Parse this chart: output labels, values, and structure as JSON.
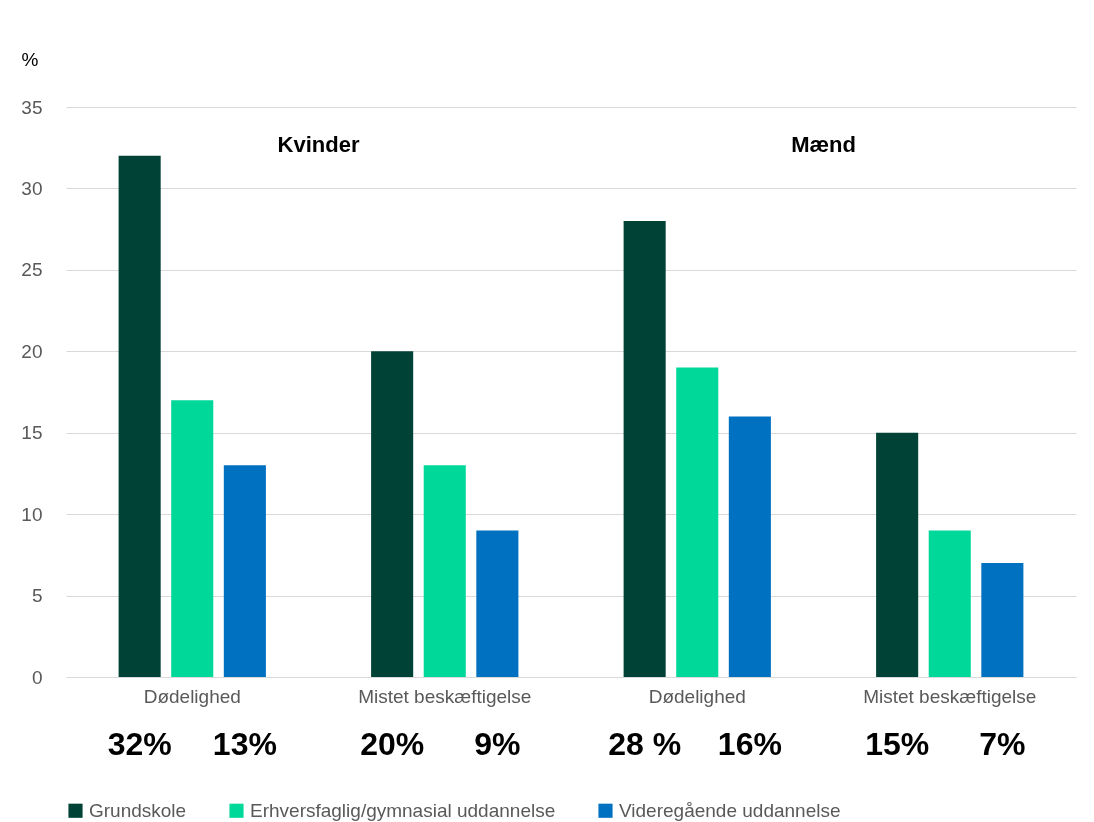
{
  "chart_data": {
    "type": "bar",
    "ylabel": "%",
    "categories": [
      "Dødelighed",
      "Mistet beskæftigelse",
      "Dødelighed",
      "Mistet beskæftigelse"
    ],
    "series": [
      {
        "name": "Grundskole",
        "color": "#004236",
        "values": [
          32,
          20,
          28,
          15
        ],
        "value_labels": [
          "32%",
          "20%",
          "28 %",
          "15%"
        ]
      },
      {
        "name": "Erhversfaglig/gymnasial uddannelse",
        "color": "#00d89a",
        "values": [
          17,
          13,
          19,
          9
        ]
      },
      {
        "name": "Videregående uddannelse",
        "color": "#0071c1",
        "values": [
          13,
          9,
          16,
          7
        ],
        "value_labels": [
          "13%",
          "9%",
          "16%",
          "7%"
        ]
      }
    ],
    "ylim": [
      0,
      35
    ],
    "yticks": [
      0,
      5,
      10,
      15,
      20,
      25,
      30,
      35
    ],
    "grid": "y",
    "legend": "bottom",
    "annotations": [
      "Kvinder",
      "Mænd"
    ]
  }
}
